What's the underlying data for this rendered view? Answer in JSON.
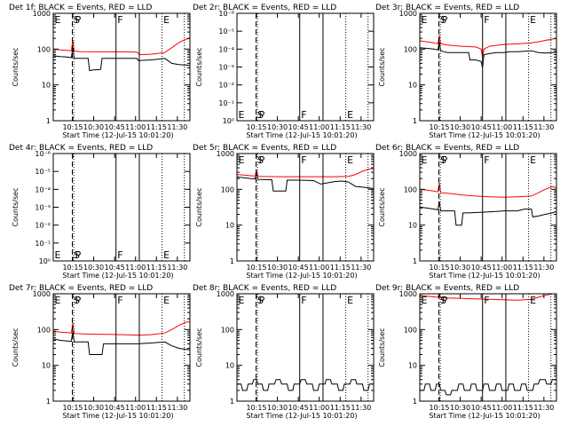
{
  "colors": {
    "events": "#000000",
    "lld": "#ff0000",
    "background": "#ffffff",
    "axes": "#000000"
  },
  "shared": {
    "xlabel": "Start Time (12-Jul-15 10:01:20)",
    "ylabel": "Counts/sec",
    "x_tick_labels": [
      "10:15",
      "10:30",
      "10:45",
      "11:00",
      "11:15",
      "11:30"
    ],
    "x_tick_minutes": [
      14,
      29,
      44,
      59,
      74,
      89
    ],
    "xlim_minutes": [
      0,
      98
    ],
    "ylim": [
      1,
      1000
    ],
    "yscale": "log",
    "y_tick_labels_decade": [
      "1",
      "10",
      "100",
      "1000"
    ],
    "y_tick_labels_small": [
      "10⁰",
      "10⁻¹",
      "10⁻²",
      "10⁻³",
      "10⁻⁴",
      "10⁻⁵",
      "10⁻⁶"
    ],
    "event_markers": [
      {
        "label": "E",
        "minute": 0,
        "style": "dotted"
      },
      {
        "label": "S",
        "minute": 13.7,
        "style": "dashed"
      },
      {
        "label": "P",
        "minute": 14.7,
        "style": "dotted"
      },
      {
        "label": "F",
        "minute": 45,
        "style": "solid"
      },
      {
        "label": "",
        "minute": 61.7,
        "style": "solid"
      },
      {
        "label": "E",
        "minute": 78,
        "style": "dotted"
      },
      {
        "label": "",
        "minute": 94,
        "style": "dotted"
      }
    ]
  },
  "chart_data": [
    {
      "type": "line",
      "title": "Det 1f: BLACK = Events, RED = LLD",
      "yaxis_labels": "decade",
      "ylim": [
        1,
        1000
      ],
      "series": [
        {
          "name": "Events",
          "x": [
            0,
            5,
            10,
            13,
            14,
            15,
            17,
            25,
            26,
            28,
            34,
            35,
            45,
            47,
            55,
            60,
            61,
            70,
            75,
            80,
            85,
            90,
            95,
            98
          ],
          "y": [
            65,
            62,
            60,
            58,
            110,
            55,
            55,
            55,
            25,
            26,
            27,
            55,
            55,
            55,
            55,
            55,
            48,
            50,
            52,
            55,
            40,
            37,
            36,
            35
          ]
        },
        {
          "name": "LLD",
          "x": [
            0,
            5,
            10,
            13,
            14,
            15,
            20,
            30,
            40,
            50,
            60,
            62,
            70,
            80,
            85,
            90,
            95,
            98
          ],
          "y": [
            100,
            95,
            92,
            90,
            170,
            88,
            85,
            84,
            84,
            84,
            82,
            70,
            72,
            80,
            110,
            150,
            190,
            200
          ]
        }
      ]
    },
    {
      "type": "line",
      "title": "Det 2r: BLACK = Events, RED = LLD",
      "yaxis_labels": "small",
      "ylim": [
        1,
        1000
      ],
      "series": []
    },
    {
      "type": "line",
      "title": "Det 3r: BLACK = Events, RED = LLD",
      "yaxis_labels": "decade",
      "ylim": [
        1,
        1000
      ],
      "series": [
        {
          "name": "Events",
          "x": [
            0,
            5,
            10,
            13,
            14,
            15,
            17,
            20,
            25,
            35,
            36,
            40,
            44,
            45,
            46,
            50,
            55,
            60,
            65,
            70,
            80,
            85,
            90,
            95,
            98
          ],
          "y": [
            110,
            105,
            100,
            95,
            160,
            90,
            85,
            80,
            80,
            80,
            50,
            50,
            45,
            30,
            70,
            75,
            80,
            80,
            85,
            85,
            90,
            80,
            78,
            80,
            82
          ]
        },
        {
          "name": "LLD",
          "x": [
            0,
            5,
            10,
            13,
            14,
            15,
            20,
            30,
            40,
            44,
            45,
            46,
            50,
            60,
            70,
            80,
            85,
            90,
            95,
            98
          ],
          "y": [
            170,
            160,
            150,
            140,
            240,
            140,
            130,
            120,
            115,
            100,
            60,
            100,
            120,
            135,
            140,
            150,
            160,
            175,
            190,
            200
          ]
        }
      ]
    },
    {
      "type": "line",
      "title": "Det 4r: BLACK = Events, RED = LLD",
      "yaxis_labels": "small",
      "ylim": [
        1,
        1000
      ],
      "series": []
    },
    {
      "type": "line",
      "title": "Det 5r: BLACK = Events, RED = LLD",
      "yaxis_labels": "decade",
      "ylim": [
        1,
        1000
      ],
      "series": [
        {
          "name": "Events",
          "x": [
            0,
            5,
            10,
            13,
            14,
            15,
            25,
            26,
            35,
            36,
            45,
            55,
            60,
            70,
            75,
            80,
            85,
            90,
            95,
            98
          ],
          "y": [
            220,
            210,
            200,
            195,
            280,
            190,
            185,
            90,
            90,
            180,
            180,
            175,
            140,
            165,
            170,
            160,
            120,
            115,
            110,
            105
          ]
        },
        {
          "name": "LLD",
          "x": [
            0,
            5,
            10,
            13,
            14,
            15,
            20,
            30,
            40,
            50,
            60,
            70,
            80,
            85,
            90,
            95,
            98
          ],
          "y": [
            260,
            250,
            240,
            235,
            330,
            230,
            228,
            225,
            225,
            225,
            225,
            225,
            230,
            260,
            320,
            370,
            380
          ]
        }
      ]
    },
    {
      "type": "line",
      "title": "Det 6r: BLACK = Events, RED = LLD",
      "yaxis_labels": "decade",
      "ylim": [
        1,
        1000
      ],
      "series": [
        {
          "name": "Events",
          "x": [
            0,
            5,
            10,
            13,
            14,
            15,
            20,
            25,
            26,
            30,
            31,
            35,
            45,
            55,
            60,
            70,
            75,
            80,
            81,
            85,
            90,
            95,
            98
          ],
          "y": [
            32,
            30,
            28,
            27,
            45,
            25,
            25,
            25,
            10,
            10,
            22,
            22,
            23,
            24,
            25,
            25,
            28,
            28,
            17,
            18,
            20,
            22,
            24
          ]
        },
        {
          "name": "LLD",
          "x": [
            0,
            5,
            10,
            13,
            14,
            15,
            20,
            30,
            40,
            50,
            60,
            70,
            80,
            85,
            90,
            95,
            98
          ],
          "y": [
            100,
            95,
            90,
            85,
            150,
            80,
            78,
            70,
            65,
            62,
            60,
            62,
            65,
            80,
            100,
            120,
            110
          ]
        }
      ]
    },
    {
      "type": "line",
      "title": "Det 7r: BLACK = Events, RED = LLD",
      "yaxis_labels": "decade",
      "ylim": [
        1,
        1000
      ],
      "series": [
        {
          "name": "Events",
          "x": [
            0,
            5,
            10,
            13,
            14,
            15,
            20,
            25,
            26,
            35,
            36,
            45,
            55,
            60,
            70,
            80,
            85,
            90,
            95,
            98
          ],
          "y": [
            55,
            50,
            48,
            47,
            90,
            45,
            45,
            45,
            20,
            20,
            40,
            40,
            40,
            40,
            42,
            45,
            35,
            30,
            28,
            27
          ]
        },
        {
          "name": "LLD",
          "x": [
            0,
            5,
            10,
            13,
            14,
            15,
            20,
            30,
            40,
            50,
            60,
            70,
            80,
            85,
            90,
            95,
            98
          ],
          "y": [
            90,
            85,
            82,
            80,
            150,
            78,
            76,
            74,
            73,
            72,
            70,
            72,
            80,
            100,
            130,
            160,
            165
          ]
        }
      ]
    },
    {
      "type": "line",
      "title": "Det 8r: BLACK = Events, RED = LLD",
      "yaxis_labels": "decade",
      "ylim": [
        1,
        1000
      ],
      "series": [
        {
          "name": "Events",
          "x": [
            0,
            3,
            4,
            7,
            8,
            11,
            12,
            14,
            15,
            18,
            19,
            22,
            23,
            27,
            28,
            31,
            32,
            36,
            37,
            40,
            41,
            45,
            46,
            49,
            50,
            54,
            55,
            58,
            59,
            63,
            64,
            67,
            68,
            72,
            73,
            76,
            77,
            81,
            82,
            85,
            86,
            90,
            91,
            94,
            95,
            98
          ],
          "y": [
            3,
            3,
            2,
            2,
            3,
            3,
            4,
            4,
            3,
            3,
            2,
            2,
            3,
            3,
            4,
            4,
            3,
            3,
            2,
            2,
            3,
            3,
            4,
            4,
            3,
            3,
            2,
            2,
            3,
            3,
            4,
            4,
            3,
            3,
            2,
            2,
            3,
            3,
            4,
            4,
            3,
            3,
            2,
            2,
            3,
            3
          ]
        }
      ]
    },
    {
      "type": "line",
      "title": "Det 9r: BLACK = Events, RED = LLD",
      "yaxis_labels": "decade",
      "ylim": [
        1,
        1000
      ],
      "series": [
        {
          "name": "Events",
          "x": [
            0,
            3,
            4,
            7,
            8,
            11,
            12,
            14,
            15,
            18,
            19,
            22,
            23,
            27,
            28,
            31,
            32,
            36,
            37,
            40,
            41,
            45,
            46,
            49,
            50,
            54,
            55,
            58,
            59,
            63,
            64,
            67,
            68,
            72,
            73,
            76,
            77,
            81,
            82,
            85,
            86,
            90,
            91,
            94,
            95,
            98
          ],
          "y": [
            2,
            2,
            3,
            3,
            2,
            2,
            3,
            3,
            2,
            2,
            1.5,
            1.5,
            2,
            2,
            3,
            3,
            2,
            2,
            3,
            3,
            2,
            2,
            3,
            3,
            2,
            2,
            3,
            3,
            2,
            2,
            3,
            3,
            2,
            2,
            3,
            3,
            2,
            2,
            3,
            3,
            4,
            4,
            3,
            3,
            4,
            4
          ]
        },
        {
          "name": "LLD",
          "x": [
            0,
            5,
            10,
            13,
            14,
            15,
            20,
            30,
            40,
            50,
            60,
            70,
            80,
            85,
            90,
            95,
            98
          ],
          "y": [
            900,
            850,
            820,
            800,
            1000,
            780,
            760,
            740,
            720,
            700,
            680,
            660,
            700,
            800,
            900,
            1000,
            1000
          ]
        }
      ]
    }
  ]
}
